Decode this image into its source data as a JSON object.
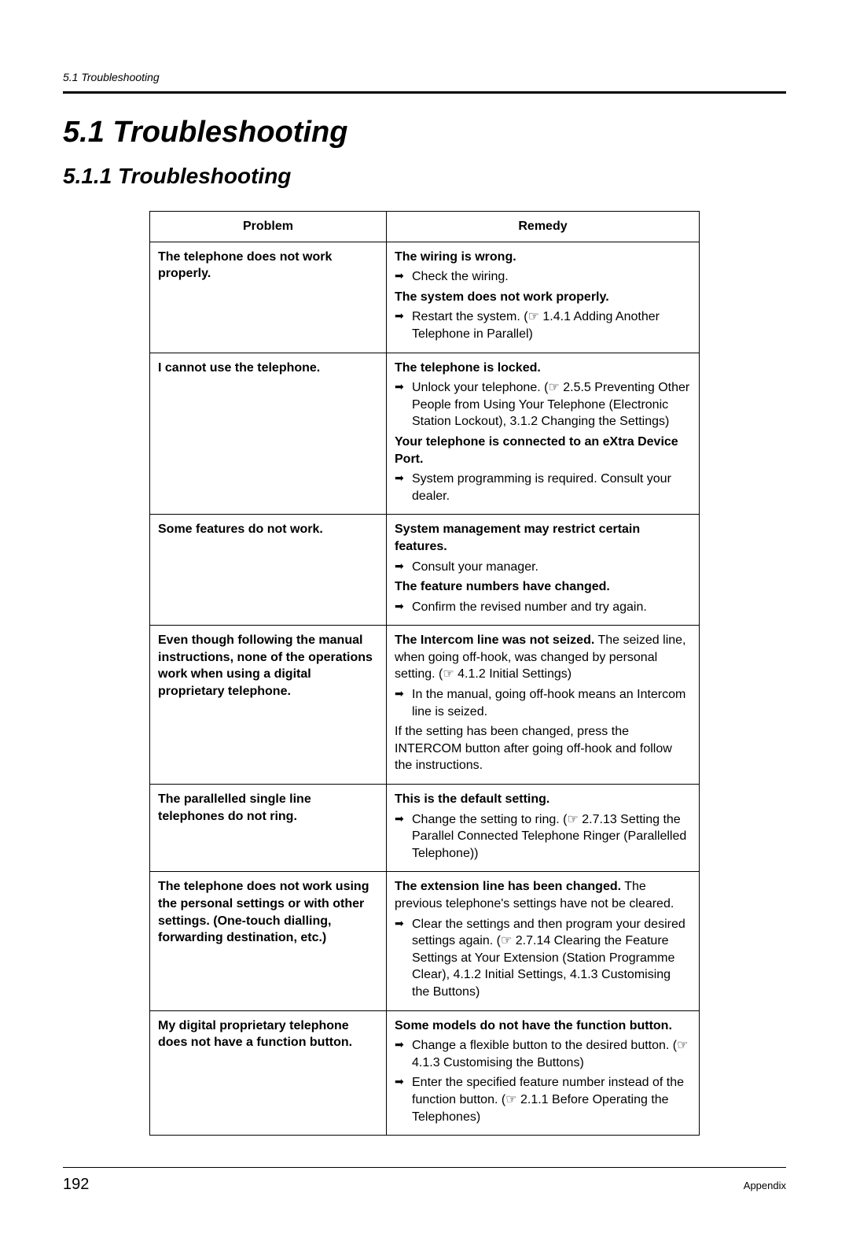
{
  "header": {
    "running": "5.1   Troubleshooting"
  },
  "headings": {
    "h1": "5.1   Troubleshooting",
    "h2": "5.1.1   Troubleshooting"
  },
  "table": {
    "columns": [
      "Problem",
      "Remedy"
    ],
    "rows": [
      {
        "problem": "The telephone does not work properly.",
        "remedy": [
          {
            "type": "bold",
            "text": "The wiring is wrong."
          },
          {
            "type": "arrow",
            "text": "Check the wiring."
          },
          {
            "type": "bold",
            "text": "The system does not work properly."
          },
          {
            "type": "arrow",
            "text": "Restart the system. (",
            "ref": "1.4.1   Adding Another Telephone in Parallel",
            "after": ")"
          }
        ]
      },
      {
        "problem": "I cannot use the telephone.",
        "remedy": [
          {
            "type": "bold",
            "text": "The telephone is locked."
          },
          {
            "type": "arrow",
            "text": "Unlock your telephone. (",
            "ref": "2.5.5   Preventing Other People from Using Your Telephone (Electronic Station Lockout), 3.1.2   Changing the Settings",
            "after": ")"
          },
          {
            "type": "bold",
            "text": "Your telephone is connected to an eXtra Device Port."
          },
          {
            "type": "arrow",
            "text": "System programming is required. Consult your dealer."
          }
        ]
      },
      {
        "problem": "Some features do not work.",
        "remedy": [
          {
            "type": "bold",
            "text": "System management may restrict certain features."
          },
          {
            "type": "arrow",
            "text": "Consult your manager."
          },
          {
            "type": "bold",
            "text": "The feature numbers have changed."
          },
          {
            "type": "arrow",
            "text": "Confirm the revised number and try again."
          }
        ]
      },
      {
        "problem": "Even though following the manual instructions, none of the operations work when using a digital proprietary telephone.",
        "remedy": [
          {
            "type": "mixed",
            "bold": "The Intercom line was not seized.",
            "text": " The seized line, when going off-hook, was changed by personal setting. (",
            "ref": "4.1.2   Initial Settings",
            "after": ")"
          },
          {
            "type": "arrow",
            "text": "In the manual, going off-hook means an Intercom line is seized."
          },
          {
            "type": "plain",
            "text": "If the setting has been changed, press the INTERCOM button after going off-hook and follow the instructions."
          }
        ]
      },
      {
        "problem": "The parallelled single line telephones do not ring.",
        "remedy": [
          {
            "type": "bold",
            "text": "This is the default setting."
          },
          {
            "type": "arrow",
            "text": "Change the setting to ring. (",
            "ref": "2.7.13   Setting the Parallel Connected Telephone Ringer (Parallelled Telephone)",
            "after": ")"
          }
        ]
      },
      {
        "problem": "The telephone does not work using the personal settings or with other settings. (One-touch dialling, forwarding destination, etc.)",
        "remedy": [
          {
            "type": "mixed",
            "bold": "The extension line has been changed.",
            "text": " The previous telephone's settings have not be cleared."
          },
          {
            "type": "arrow",
            "text": "Clear the settings and then program your desired settings again. (",
            "ref": "2.7.14   Clearing the Feature Settings at Your Extension (Station Programme Clear), 4.1.2   Initial Settings, 4.1.3   Customising the Buttons",
            "after": ")"
          }
        ]
      },
      {
        "problem": "My digital proprietary telephone does not have a function button.",
        "remedy": [
          {
            "type": "bold",
            "text": "Some models do not have the function button."
          },
          {
            "type": "arrow",
            "text": "Change a flexible button to the desired button. (",
            "ref": "4.1.3   Customising the Buttons",
            "after": ")",
            "ref_leading": true
          },
          {
            "type": "arrow",
            "text": "Enter the specified feature number instead of the function button. (",
            "ref": "2.1.1   Before Operating the Telephones",
            "after": ")"
          }
        ]
      }
    ]
  },
  "footer": {
    "page_number": "192",
    "section": "Appendix"
  }
}
